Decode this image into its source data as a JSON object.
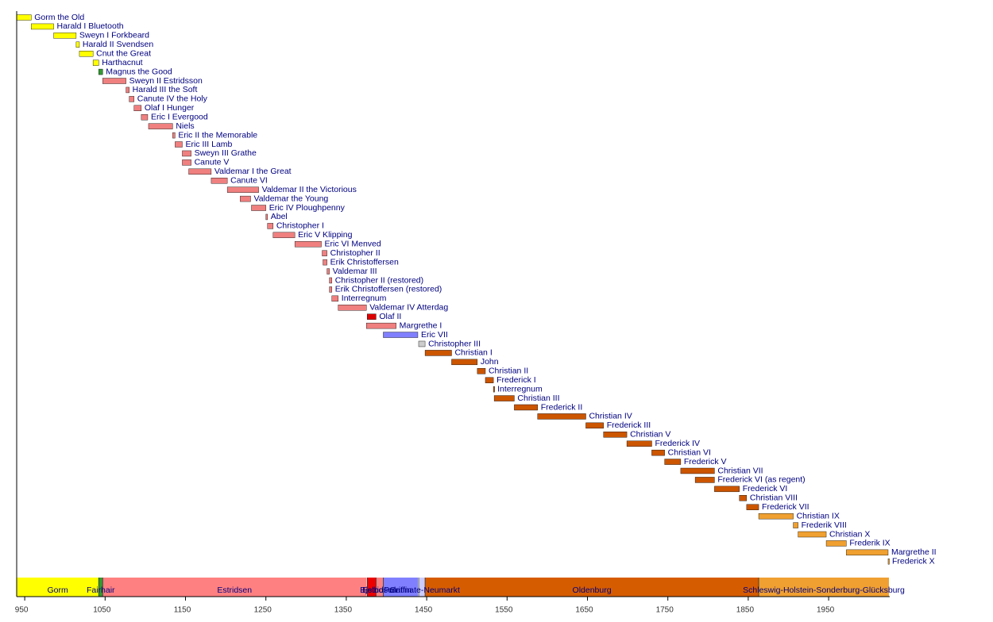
{
  "chart_data": {
    "type": "timeline",
    "xlim": [
      940,
      2026
    ],
    "xticks": [
      950,
      1050,
      1150,
      1250,
      1350,
      1450,
      1550,
      1650,
      1750,
      1850,
      1950
    ],
    "rows": [
      {
        "name": "Gorm the Old",
        "start": 936,
        "end": 958,
        "color": "#ffff00"
      },
      {
        "name": "Harald I Bluetooth",
        "start": 958,
        "end": 986,
        "color": "#ffff00"
      },
      {
        "name": "Sweyn I Forkbeard",
        "start": 986,
        "end": 1014,
        "color": "#ffff00"
      },
      {
        "name": "Harald II Svendsen",
        "start": 1014,
        "end": 1018,
        "color": "#ffff00"
      },
      {
        "name": "Cnut the Great",
        "start": 1018,
        "end": 1035,
        "color": "#ffff00"
      },
      {
        "name": "Harthacnut",
        "start": 1035,
        "end": 1042,
        "color": "#ffff00"
      },
      {
        "name": "Magnus the Good",
        "start": 1042,
        "end": 1047,
        "color": "#339933"
      },
      {
        "name": "Sweyn II Estridsson",
        "start": 1047,
        "end": 1076,
        "color": "#f08080"
      },
      {
        "name": "Harald III the Soft",
        "start": 1076,
        "end": 1080,
        "color": "#f08080"
      },
      {
        "name": "Canute IV the Holy",
        "start": 1080,
        "end": 1086,
        "color": "#f08080"
      },
      {
        "name": "Olaf I Hunger",
        "start": 1086,
        "end": 1095,
        "color": "#f08080"
      },
      {
        "name": "Eric I Evergood",
        "start": 1095,
        "end": 1103,
        "color": "#f08080"
      },
      {
        "name": "Niels",
        "start": 1104,
        "end": 1134,
        "color": "#f08080"
      },
      {
        "name": "Eric II the Memorable",
        "start": 1134,
        "end": 1137,
        "color": "#f08080"
      },
      {
        "name": "Eric III Lamb",
        "start": 1137,
        "end": 1146,
        "color": "#f08080"
      },
      {
        "name": "Sweyn III Grathe",
        "start": 1146,
        "end": 1157,
        "color": "#f08080"
      },
      {
        "name": "Canute V",
        "start": 1146,
        "end": 1157,
        "color": "#f08080"
      },
      {
        "name": "Valdemar I the Great",
        "start": 1154,
        "end": 1182,
        "color": "#f08080"
      },
      {
        "name": "Canute VI",
        "start": 1182,
        "end": 1202,
        "color": "#f08080"
      },
      {
        "name": "Valdemar II the Victorious",
        "start": 1202,
        "end": 1241,
        "color": "#f08080"
      },
      {
        "name": "Valdemar the Young",
        "start": 1218,
        "end": 1231,
        "color": "#f08080"
      },
      {
        "name": "Eric IV Ploughpenny",
        "start": 1232,
        "end": 1250,
        "color": "#f08080"
      },
      {
        "name": "Abel",
        "start": 1250,
        "end": 1252,
        "color": "#f08080"
      },
      {
        "name": "Christopher I",
        "start": 1252,
        "end": 1259,
        "color": "#f08080"
      },
      {
        "name": "Eric V Klipping",
        "start": 1259,
        "end": 1286,
        "color": "#f08080"
      },
      {
        "name": "Eric VI Menved",
        "start": 1286,
        "end": 1319,
        "color": "#f08080"
      },
      {
        "name": "Christopher II",
        "start": 1320,
        "end": 1326,
        "color": "#f08080"
      },
      {
        "name": "Erik Christoffersen",
        "start": 1321,
        "end": 1326,
        "color": "#f08080"
      },
      {
        "name": "Valdemar III",
        "start": 1326,
        "end": 1329,
        "color": "#f08080"
      },
      {
        "name": "Christopher II (restored)",
        "start": 1329,
        "end": 1332,
        "color": "#f08080"
      },
      {
        "name": "Erik Christoffersen (restored)",
        "start": 1329,
        "end": 1332,
        "color": "#f08080"
      },
      {
        "name": "Interregnum",
        "start": 1332,
        "end": 1340,
        "color": "#f08080"
      },
      {
        "name": "Valdemar IV Atterdag",
        "start": 1340,
        "end": 1375,
        "color": "#f08080"
      },
      {
        "name": "Olaf II",
        "start": 1376,
        "end": 1387,
        "color": "#dd0000"
      },
      {
        "name": "Margrethe I",
        "start": 1375,
        "end": 1412,
        "color": "#f08080"
      },
      {
        "name": "Eric VII",
        "start": 1396,
        "end": 1439,
        "color": "#8080ff"
      },
      {
        "name": "Christopher III",
        "start": 1440,
        "end": 1448,
        "color": "#cccccc"
      },
      {
        "name": "Christian I",
        "start": 1448,
        "end": 1481,
        "color": "#cc5500"
      },
      {
        "name": "John",
        "start": 1481,
        "end": 1513,
        "color": "#cc5500"
      },
      {
        "name": "Christian II",
        "start": 1513,
        "end": 1523,
        "color": "#cc5500"
      },
      {
        "name": "Frederick I",
        "start": 1523,
        "end": 1533,
        "color": "#cc5500"
      },
      {
        "name": "Interregnum",
        "start": 1533,
        "end": 1534,
        "color": "#cc5500"
      },
      {
        "name": "Christian III",
        "start": 1534,
        "end": 1559,
        "color": "#cc5500"
      },
      {
        "name": "Frederick II",
        "start": 1559,
        "end": 1588,
        "color": "#cc5500"
      },
      {
        "name": "Christian IV",
        "start": 1588,
        "end": 1648,
        "color": "#cc5500"
      },
      {
        "name": "Frederick III",
        "start": 1648,
        "end": 1670,
        "color": "#cc5500"
      },
      {
        "name": "Christian V",
        "start": 1670,
        "end": 1699,
        "color": "#cc5500"
      },
      {
        "name": "Frederick IV",
        "start": 1699,
        "end": 1730,
        "color": "#cc5500"
      },
      {
        "name": "Christian VI",
        "start": 1730,
        "end": 1746,
        "color": "#cc5500"
      },
      {
        "name": "Frederick V",
        "start": 1746,
        "end": 1766,
        "color": "#cc5500"
      },
      {
        "name": "Christian VII",
        "start": 1766,
        "end": 1808,
        "color": "#cc5500"
      },
      {
        "name": "Frederick VI (as regent)",
        "start": 1784,
        "end": 1808,
        "color": "#cc5500"
      },
      {
        "name": "Frederick VI",
        "start": 1808,
        "end": 1839,
        "color": "#cc5500"
      },
      {
        "name": "Christian VIII",
        "start": 1839,
        "end": 1848,
        "color": "#cc5500"
      },
      {
        "name": "Frederick VII",
        "start": 1848,
        "end": 1863,
        "color": "#cc5500"
      },
      {
        "name": "Christian IX",
        "start": 1863,
        "end": 1906,
        "color": "#f0a030"
      },
      {
        "name": "Frederik VIII",
        "start": 1906,
        "end": 1912,
        "color": "#f0a030"
      },
      {
        "name": "Christian X",
        "start": 1912,
        "end": 1947,
        "color": "#f0a030"
      },
      {
        "name": "Frederik IX",
        "start": 1947,
        "end": 1972,
        "color": "#f0a030"
      },
      {
        "name": "Margrethe II",
        "start": 1972,
        "end": 2024,
        "color": "#f0a030"
      },
      {
        "name": "Frederick X",
        "start": 2024,
        "end": 2025,
        "color": "#f0a030"
      }
    ],
    "dynasties": [
      {
        "name": "Gorm",
        "start": 936,
        "end": 1042,
        "color": "#ffff00"
      },
      {
        "name": "Fairhair",
        "start": 1042,
        "end": 1047,
        "color": "#339933"
      },
      {
        "name": "Estridsen",
        "start": 1047,
        "end": 1375,
        "color": "#ff8080"
      },
      {
        "name": "Bjelbo",
        "start": 1376,
        "end": 1387,
        "color": "#ee0000"
      },
      {
        "name": "Estridsen",
        "start": 1387,
        "end": 1396,
        "color": "#ff8080"
      },
      {
        "name": "Griffin",
        "start": 1396,
        "end": 1439,
        "color": "#8080ff"
      },
      {
        "name": "Palatinate-Neumarkt",
        "start": 1440,
        "end": 1448,
        "color": "#ccccff"
      },
      {
        "name": "Oldenburg",
        "start": 1448,
        "end": 1863,
        "color": "#d65c00"
      },
      {
        "name": "Schleswig-Holstein-Sonderburg-Glücksburg",
        "start": 1863,
        "end": 2025,
        "color": "#f0a030"
      }
    ]
  }
}
